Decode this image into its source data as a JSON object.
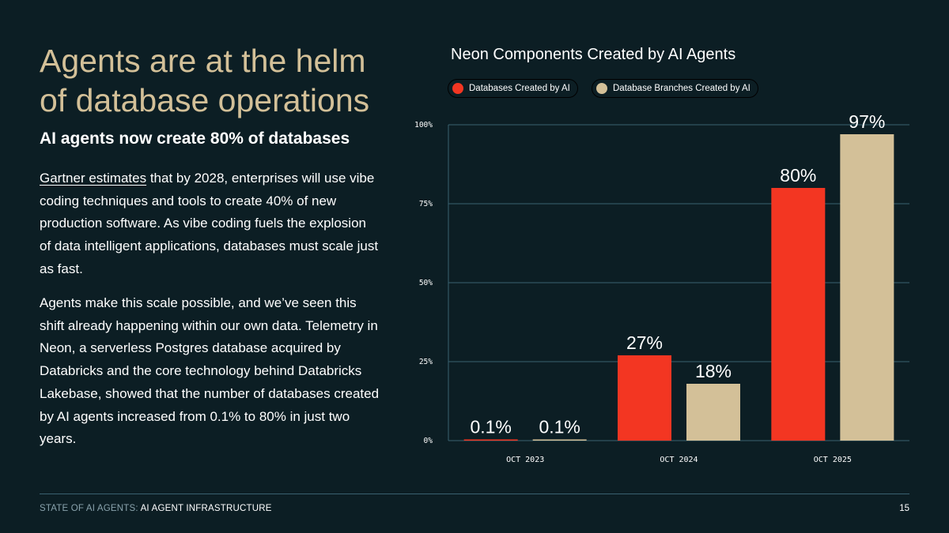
{
  "headline": "Agents are at the helm of database operations",
  "subhead": "AI agents now create 80% of databases",
  "paragraph1": {
    "link_text": "Gartner estimates",
    "text": " that by 2028, enterprises will use vibe coding techniques and tools to create 40% of new production software. As vibe coding fuels the explosion of data intelligent applications, databases must scale just as fast."
  },
  "paragraph2": "Agents make this scale possible, and we’ve seen this shift already happening within our own data. Telemetry in Neon, a serverless Postgres database acquired by Databricks and the core technology behind Databricks Lakebase, showed that the number of databases created by AI agents increased from 0.1% to 80% in just two years.",
  "footer": {
    "section": "STATE OF AI AGENTS:",
    "topic": "AI AGENT INFRASTRUCTURE",
    "page": "15"
  },
  "chart_data": {
    "type": "bar",
    "title": "Neon Components Created by AI Agents",
    "categories": [
      "OCT 2023",
      "OCT 2024",
      "OCT 2025"
    ],
    "series": [
      {
        "name": "Databases Created by AI",
        "color": "#f33622",
        "values": [
          0.1,
          27,
          80
        ],
        "labels": [
          "0.1%",
          "27%",
          "80%"
        ]
      },
      {
        "name": "Database Branches Created by AI",
        "color": "#d3c098",
        "values": [
          0.1,
          18,
          97
        ],
        "labels": [
          "0.1%",
          "18%",
          "97%"
        ]
      }
    ],
    "ylim": [
      0,
      100
    ],
    "yticks": [
      0,
      25,
      50,
      75,
      100
    ],
    "ytick_labels": [
      "0%",
      "25%",
      "50%",
      "75%",
      "100%"
    ],
    "grid": true,
    "legend": "top"
  }
}
